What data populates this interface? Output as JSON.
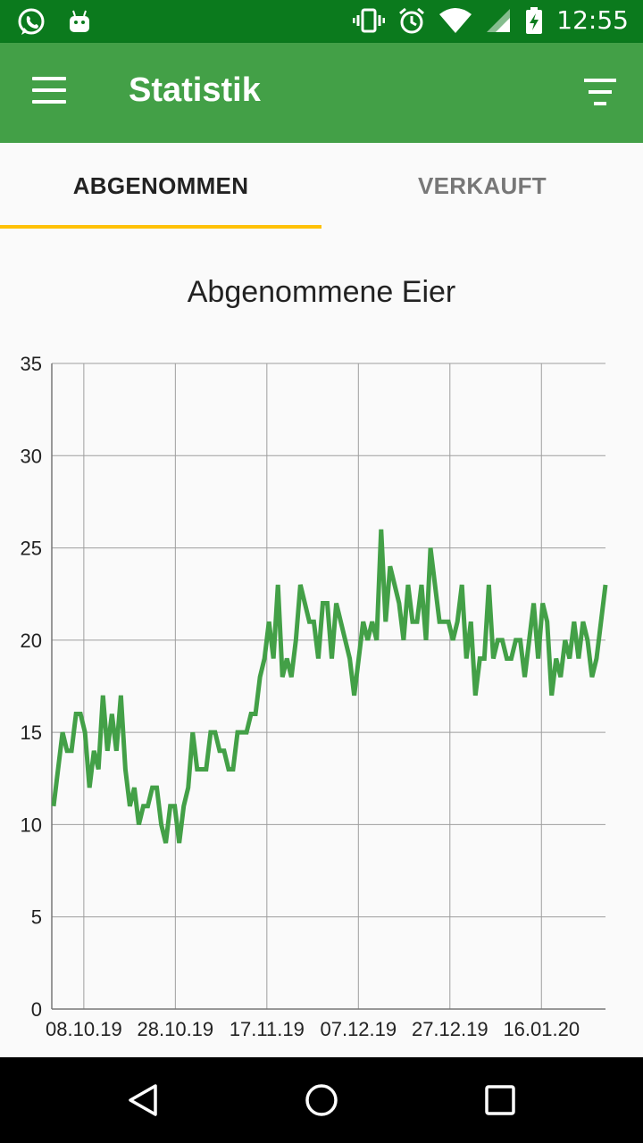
{
  "status_bar": {
    "time": "12:55",
    "left_icons": [
      "whatsapp-icon",
      "android-icon"
    ],
    "right_icons": [
      "vibrate-icon",
      "alarm-icon",
      "wifi-icon",
      "signal-icon",
      "battery-charging-icon"
    ]
  },
  "app_bar": {
    "title": "Statistik",
    "menu_icon": "menu-icon",
    "filter_icon": "filter-icon",
    "background": "#43a047"
  },
  "tabs": [
    {
      "label": "ABGENOMMEN",
      "selected": true
    },
    {
      "label": "VERKAUFT",
      "selected": false
    }
  ],
  "tab_indicator_color": "#ffc107",
  "chart_data": {
    "type": "line",
    "title": "Abgenommene Eier",
    "xlabel": "",
    "ylabel": "",
    "ylim": [
      0,
      35
    ],
    "yticks": [
      "0",
      "5",
      "10",
      "15",
      "20",
      "25",
      "30",
      "35"
    ],
    "xticks": [
      "08.10.19",
      "28.10.19",
      "17.11.19",
      "07.12.19",
      "27.12.19",
      "16.01.20"
    ],
    "x_start": "01.10.19",
    "x_end": "30.01.20",
    "grid": true,
    "line_color": "#43a047",
    "series": [
      {
        "name": "",
        "values": [
          11,
          13,
          15,
          14,
          14,
          16,
          16,
          15,
          12,
          14,
          13,
          17,
          14,
          16,
          14,
          17,
          13,
          11,
          12,
          10,
          11,
          11,
          12,
          12,
          10,
          9,
          11,
          11,
          9,
          11,
          12,
          15,
          13,
          13,
          13,
          15,
          15,
          14,
          14,
          13,
          13,
          15,
          15,
          15,
          16,
          16,
          18,
          19,
          21,
          19,
          23,
          18,
          19,
          18,
          20,
          23,
          22,
          21,
          21,
          19,
          22,
          22,
          19,
          22,
          21,
          20,
          19,
          17,
          19,
          21,
          20,
          21,
          20,
          26,
          21,
          24,
          23,
          22,
          20,
          23,
          21,
          21,
          23,
          20,
          25,
          23,
          21,
          21,
          21,
          20,
          21,
          23,
          19,
          21,
          17,
          19,
          19,
          23,
          19,
          20,
          20,
          19,
          19,
          20,
          20,
          18,
          20,
          22,
          19,
          22,
          21,
          17,
          19,
          18,
          20,
          19,
          21,
          19,
          21,
          20,
          18,
          19,
          21,
          23
        ]
      }
    ]
  },
  "nav_bar": {
    "buttons": [
      "back-icon",
      "home-icon",
      "recents-icon"
    ]
  }
}
